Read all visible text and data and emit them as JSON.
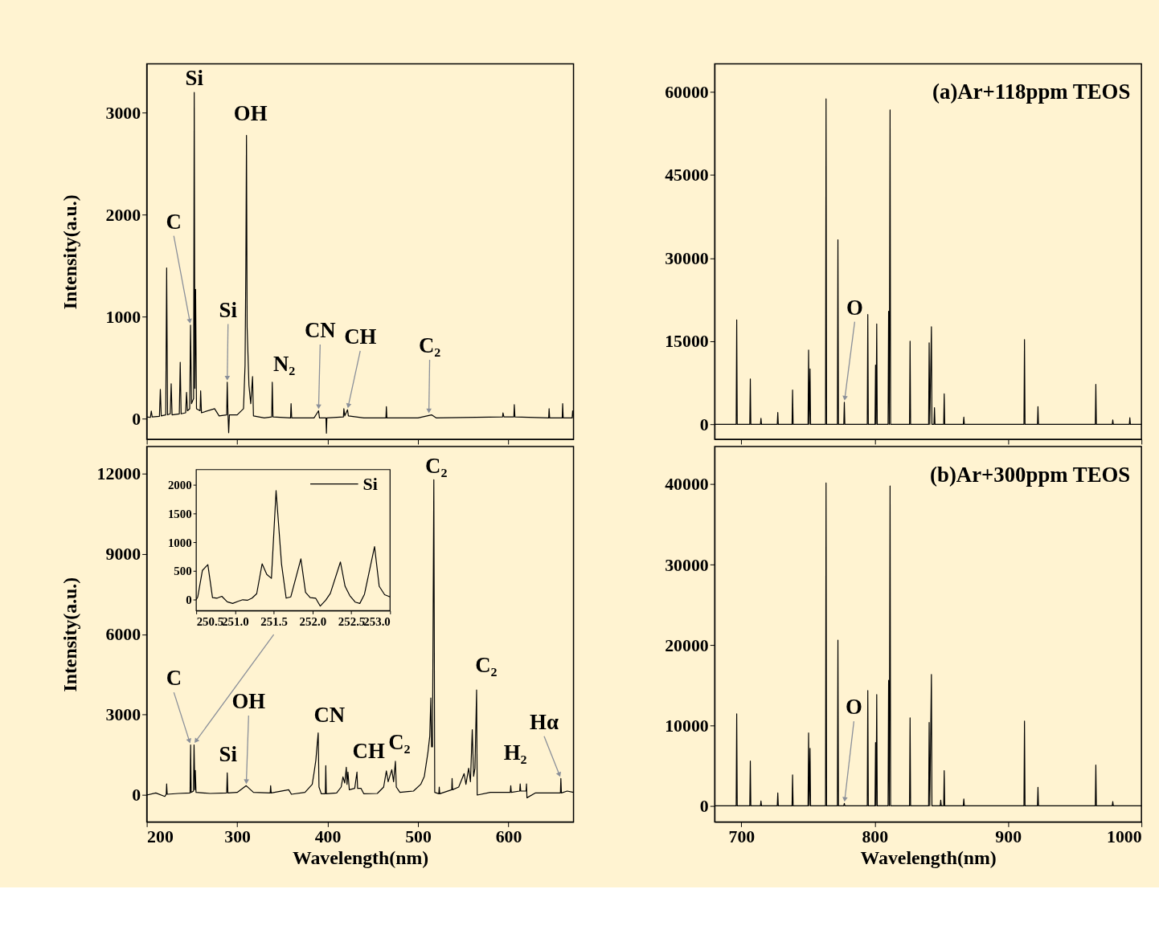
{
  "chart_data": [
    {
      "type": "line",
      "ylabel": "Intensity(a.u.)",
      "xlim": [
        200,
        672
      ],
      "ylim": [
        -200,
        3480
      ],
      "xticks": [
        200,
        300,
        400,
        500,
        600
      ],
      "yticks": [
        0,
        1000,
        2000,
        3000
      ],
      "tick_labels": "y",
      "series": [
        {
          "color": "#000000",
          "x": [
            200,
            204,
            205,
            206,
            214,
            215,
            216,
            221,
            222,
            223,
            226,
            227,
            228,
            236,
            237,
            238,
            243,
            244,
            245,
            247.5,
            248.4,
            249.5,
            251.8,
            252.5,
            253.2,
            254,
            255,
            259,
            259.6,
            260.5,
            275,
            280,
            288.4,
            289,
            289.8,
            290.6,
            291.4,
            300,
            307,
            308.7,
            309.6,
            310.3,
            311,
            313,
            315,
            317,
            318,
            330,
            338.2,
            338.8,
            339.6,
            359,
            359.6,
            360.3,
            385,
            390,
            391,
            398.2,
            398.7,
            399.2,
            417.5,
            418,
            419,
            422,
            423,
            440,
            464.5,
            465,
            465.6,
            500,
            515,
            520,
            593.5,
            594,
            595,
            606,
            606.5,
            607.2,
            644.5,
            645,
            645.6,
            659.5,
            660,
            660.6,
            670.5,
            671,
            672
          ],
          "values": [
            20,
            15,
            78,
            20,
            25,
            290,
            30,
            40,
            1480,
            40,
            50,
            345,
            40,
            50,
            555,
            50,
            60,
            260,
            80,
            100,
            920,
            150,
            200,
            3200,
            300,
            1270,
            100,
            80,
            275,
            60,
            100,
            30,
            40,
            360,
            50,
            -135,
            40,
            40,
            100,
            525,
            1500,
            2780,
            900,
            330,
            150,
            415,
            30,
            10,
            20,
            360,
            20,
            10,
            150,
            10,
            10,
            80,
            10,
            10,
            -140,
            10,
            20,
            100,
            30,
            90,
            30,
            10,
            10,
            120,
            10,
            10,
            40,
            10,
            20,
            60,
            20,
            20,
            140,
            20,
            10,
            100,
            10,
            10,
            150,
            10,
            10,
            80,
            10
          ]
        }
      ],
      "annotations": [
        {
          "text": "Si",
          "x": 252.5,
          "y": 3200
        },
        {
          "text": "OH",
          "x": 310.3,
          "y": 2780
        },
        {
          "text": "C",
          "x": 248.4,
          "y": 920
        },
        {
          "text": "Si",
          "x": 289,
          "y": 360
        },
        {
          "text": "N₂",
          "x": 338.8,
          "y": 360
        },
        {
          "text": "CN",
          "x": 390,
          "y": 80
        },
        {
          "text": "CH",
          "x": 422,
          "y": 90
        },
        {
          "text": "C₂",
          "x": 512,
          "y": 40
        }
      ]
    },
    {
      "type": "line",
      "xlim": [
        680,
        1000
      ],
      "ylim": [
        -2700,
        65000
      ],
      "xticks": [
        700,
        800,
        900,
        1000
      ],
      "yticks": [
        0,
        15000,
        30000,
        45000,
        60000
      ],
      "tick_labels": "y",
      "series": [
        {
          "color": "#000000",
          "x": [
            680,
            696.1,
            696.5,
            696.9,
            706.3,
            706.7,
            707.1,
            714.3,
            714.7,
            715.1,
            726.9,
            727.3,
            727.7,
            738,
            738.4,
            738.8,
            750,
            750.4,
            750.9,
            751.5,
            751.9,
            763.1,
            763.5,
            763.9,
            772,
            772.4,
            772.8,
            776.8,
            777.2,
            777.6,
            794.4,
            794.8,
            795.2,
            800.2,
            800.6,
            801,
            801.5,
            801.9,
            810,
            810.4,
            810.9,
            811.5,
            811.9,
            826.1,
            826.5,
            826.9,
            840.4,
            840.8,
            841.3,
            842.5,
            842.9,
            844.4,
            844.8,
            845.2,
            851.7,
            852.1,
            852.5,
            866.4,
            866.8,
            867.2,
            911.9,
            912.3,
            912.7,
            922,
            922.4,
            922.8,
            965.4,
            965.8,
            966.2,
            978.1,
            978.5,
            978.9,
            990.9,
            991.3,
            991.7,
            1000
          ],
          "values": [
            0,
            0,
            18850,
            0,
            0,
            8200,
            0,
            0,
            1100,
            0,
            0,
            2150,
            0,
            0,
            6200,
            0,
            0,
            13400,
            0,
            10000,
            0,
            0,
            58700,
            0,
            0,
            33300,
            0,
            0,
            4000,
            0,
            0,
            19800,
            0,
            0,
            10700,
            0,
            18100,
            0,
            0,
            20400,
            0,
            56700,
            0,
            0,
            15000,
            0,
            0,
            14700,
            0,
            17600,
            0,
            0,
            3000,
            0,
            0,
            5500,
            0,
            0,
            1300,
            0,
            0,
            15300,
            0,
            0,
            3200,
            0,
            0,
            7200,
            0,
            0,
            800,
            0,
            0,
            1200,
            0,
            0
          ]
        }
      ],
      "annotations": [
        "(a)Ar+118ppm TEOS",
        {
          "text": "O",
          "x": 777.2,
          "y": 4000
        }
      ]
    },
    {
      "type": "line",
      "xlabel": "Wavelength(nm)",
      "ylabel": "Intensity(a.u.)",
      "xlim": [
        200,
        672
      ],
      "ylim": [
        -1000,
        13000
      ],
      "xticks": [
        200,
        300,
        400,
        500,
        600
      ],
      "yticks": [
        0,
        3000,
        6000,
        9000,
        12000
      ],
      "series": [
        {
          "color": "#000000",
          "x": [
            200,
            210,
            220,
            221.5,
            222,
            222.6,
            235,
            247.9,
            248.5,
            249.1,
            251.7,
            252.3,
            253.2,
            253.7,
            254.5,
            270,
            288.4,
            289,
            289.7,
            300,
            310,
            318,
            336.5,
            337,
            337.6,
            357,
            360,
            375,
            383,
            385,
            387,
            389.6,
            390.5,
            393,
            397.5,
            398,
            398.6,
            410,
            415,
            417,
            419,
            420.7,
            421.5,
            422.5,
            424,
            430,
            432.5,
            433.2,
            437,
            440,
            455,
            462,
            465,
            467,
            471,
            473,
            475,
            476,
            480,
            495,
            503,
            507,
            511,
            513,
            514.2,
            515,
            516,
            517.5,
            518.5,
            523,
            523.5,
            524,
            537.3,
            537.7,
            538.2,
            545,
            551,
            553,
            556,
            558,
            560,
            561.5,
            563,
            564.8,
            565.5,
            580,
            602,
            602.6,
            603.2,
            612.5,
            613,
            613.6,
            619.5,
            620,
            620.5,
            630,
            657.5,
            658,
            658.6,
            665,
            672
          ],
          "values": [
            0,
            80,
            -50,
            30,
            415,
            30,
            60,
            80,
            1870,
            100,
            150,
            1870,
            200,
            920,
            100,
            60,
            80,
            830,
            80,
            100,
            350,
            100,
            80,
            350,
            80,
            200,
            30,
            100,
            400,
            830,
            1300,
            2320,
            300,
            50,
            50,
            1100,
            50,
            80,
            300,
            680,
            450,
            1040,
            400,
            860,
            200,
            250,
            860,
            250,
            250,
            50,
            60,
            300,
            900,
            500,
            950,
            500,
            1260,
            300,
            100,
            150,
            400,
            700,
            1600,
            2200,
            3620,
            1800,
            1800,
            11760,
            100,
            50,
            300,
            50,
            200,
            620,
            200,
            300,
            800,
            400,
            1000,
            500,
            2440,
            700,
            1000,
            3920,
            0,
            100,
            100,
            350,
            100,
            150,
            420,
            150,
            150,
            420,
            -100,
            80,
            80,
            620,
            80,
            150,
            100
          ]
        }
      ],
      "annotations": [
        {
          "text": "C",
          "x": 248.5,
          "y": 1870
        },
        {
          "text": "Si",
          "x": 289,
          "y": 830
        },
        {
          "text": "OH",
          "x": 310,
          "y": 350
        },
        {
          "text": "CN",
          "x": 389.6,
          "y": 2320
        },
        {
          "text": "CH",
          "x": 420.7,
          "y": 1040
        },
        {
          "text": "C₂",
          "x": 475,
          "y": 1260
        },
        {
          "text": "C₂",
          "x": 517.5,
          "y": 11760
        },
        {
          "text": "C₂",
          "x": 564.8,
          "y": 3920
        },
        {
          "text": "H₂",
          "x": 620,
          "y": 420
        },
        {
          "text": "Hα",
          "x": 658,
          "y": 620
        }
      ]
    },
    {
      "type": "line",
      "xlim": [
        250.5,
        253.0
      ],
      "ylim": [
        -190,
        2260
      ],
      "xticks": [
        {
          "value": 250.5,
          "label": "250.5"
        },
        {
          "value": 251,
          "label": "251.0"
        },
        {
          "value": 251.5,
          "label": "251.5"
        },
        {
          "value": 252,
          "label": "252.0"
        },
        {
          "value": 252.5,
          "label": "252.5"
        },
        {
          "value": 253,
          "label": "253.0"
        }
      ],
      "yticks": [
        0,
        500,
        1000,
        1500,
        2000
      ],
      "legend": "top right",
      "series": [
        {
          "name": "Si",
          "color": "#000000",
          "x": [
            250.5,
            250.52,
            250.58,
            250.65,
            250.71,
            250.77,
            250.83,
            250.9,
            250.97,
            251.04,
            251.1,
            251.16,
            251.22,
            251.28,
            251.35,
            251.41,
            251.47,
            251.53,
            251.6,
            251.66,
            251.72,
            251.85,
            251.91,
            251.97,
            252.04,
            252.1,
            252.17,
            252.23,
            252.36,
            252.42,
            252.48,
            252.55,
            252.61,
            252.67,
            252.8,
            252.86,
            252.93,
            253.0
          ],
          "values": [
            0,
            50,
            510,
            610,
            37,
            28,
            60,
            -37,
            -64,
            -28,
            0,
            -9,
            28,
            105,
            624,
            440,
            372,
            1895,
            624,
            28,
            50,
            711,
            128,
            37,
            28,
            -110,
            -9,
            110,
            656,
            234,
            73,
            -41,
            -64,
            96,
            922,
            234,
            87,
            50
          ]
        }
      ]
    },
    {
      "type": "line",
      "xlabel": "Wavelength(nm)",
      "xlim": [
        680,
        1000
      ],
      "ylim": [
        -2000,
        44700
      ],
      "xticks": [
        700,
        800,
        900,
        1000
      ],
      "yticks": [
        0,
        10000,
        20000,
        30000,
        40000
      ],
      "series": [
        {
          "color": "#000000",
          "x": [
            680,
            696.1,
            696.5,
            696.9,
            706.3,
            706.7,
            707.1,
            714.3,
            714.7,
            715.1,
            726.9,
            727.3,
            727.7,
            738,
            738.4,
            738.8,
            750,
            750.4,
            750.9,
            751.5,
            751.9,
            763.1,
            763.5,
            763.9,
            772,
            772.4,
            772.8,
            776.8,
            777.2,
            777.6,
            794.4,
            794.8,
            795.2,
            800.2,
            800.6,
            801,
            801.5,
            801.9,
            810,
            810.4,
            810.9,
            811.5,
            811.9,
            826.1,
            826.5,
            826.9,
            840.4,
            840.8,
            841.3,
            842.5,
            842.9,
            849.1,
            849.5,
            849.9,
            851.7,
            852.1,
            852.5,
            866.4,
            866.8,
            867.2,
            911.9,
            912.3,
            912.7,
            922,
            922.4,
            922.8,
            965.4,
            965.8,
            966.2,
            978.1,
            978.5,
            978.9,
            1000
          ],
          "values": [
            0,
            0,
            11440,
            0,
            0,
            5570,
            0,
            0,
            600,
            0,
            0,
            1600,
            0,
            0,
            3840,
            0,
            0,
            9060,
            0,
            7160,
            0,
            0,
            40160,
            0,
            0,
            20600,
            0,
            0,
            300,
            0,
            0,
            14330,
            0,
            0,
            7860,
            0,
            13830,
            0,
            0,
            15620,
            0,
            39800,
            0,
            0,
            10950,
            0,
            0,
            10380,
            0,
            16350,
            0,
            0,
            700,
            0,
            0,
            4380,
            0,
            0,
            850,
            0,
            0,
            10550,
            0,
            0,
            2310,
            0,
            0,
            5080,
            0,
            0,
            530,
            0,
            0
          ]
        }
      ],
      "annotations": [
        "(b)Ar+300ppm TEOS",
        {
          "text": "O",
          "x": 777.2,
          "y": 300
        }
      ]
    }
  ]
}
